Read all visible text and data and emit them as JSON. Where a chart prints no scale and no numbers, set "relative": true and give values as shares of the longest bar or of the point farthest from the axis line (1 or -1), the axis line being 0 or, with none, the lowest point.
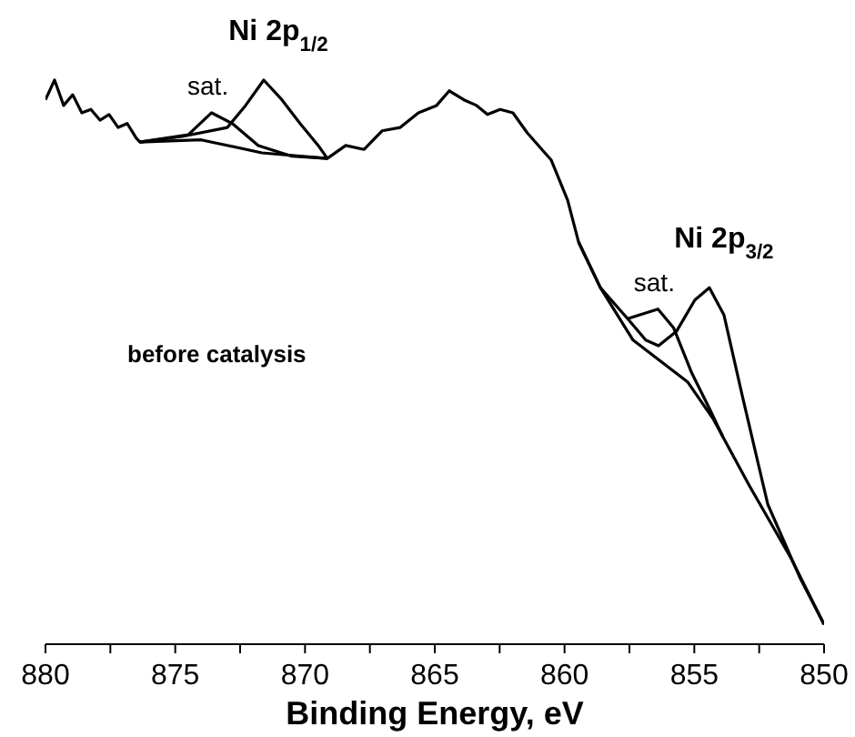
{
  "chart_data": {
    "type": "line",
    "relative": true,
    "xlabel": "Binding Energy, eV",
    "xlim": [
      880,
      850
    ],
    "xticks": [
      880,
      {
        "value": 877.5,
        "label": null
      },
      875,
      {
        "value": 872.5,
        "label": null
      },
      870,
      {
        "value": 867.5,
        "label": null
      },
      865,
      {
        "value": 862.5,
        "label": null
      },
      860,
      {
        "value": 857.5,
        "label": null
      },
      855,
      {
        "value": 852.5,
        "label": null
      },
      850
    ],
    "marker": "none",
    "series": [
      {
        "color": "#000000",
        "x": [
          880.0,
          879.65,
          879.3,
          878.95,
          878.6,
          878.25,
          877.9,
          877.55,
          877.2,
          876.85,
          876.5,
          876.36,
          874.74,
          872.99,
          872.29,
          871.59,
          870.89,
          870.19,
          869.49,
          869.14,
          868.43,
          867.73,
          867.03,
          866.33,
          865.63,
          864.93,
          864.44,
          863.88,
          863.39,
          862.97,
          862.48,
          861.99,
          861.43,
          860.51,
          859.88,
          859.46,
          858.62,
          857.57,
          856.87,
          856.38,
          855.68,
          854.98,
          854.42,
          853.86,
          853.16,
          852.17,
          850.91,
          850.0
        ],
        "values": [
          0.965,
          1.0,
          0.955,
          0.974,
          0.942,
          0.948,
          0.929,
          0.939,
          0.916,
          0.923,
          0.897,
          0.89,
          0.9,
          0.916,
          0.955,
          1.0,
          0.965,
          0.923,
          0.884,
          0.861,
          0.884,
          0.877,
          0.91,
          0.916,
          0.942,
          0.955,
          0.981,
          0.965,
          0.955,
          0.939,
          0.948,
          0.942,
          0.906,
          0.858,
          0.787,
          0.713,
          0.632,
          0.577,
          0.539,
          0.529,
          0.555,
          0.61,
          0.632,
          0.584,
          0.442,
          0.248,
          0.116,
          0.035
        ]
      },
      {
        "color": "#000000",
        "x": [
          876.36,
          874.0,
          871.66,
          869.14,
          null,
          859.46,
          858.62,
          857.36,
          855.26,
          854.28,
          852.88,
          851.27,
          850.0
        ],
        "values": [
          0.89,
          0.894,
          0.871,
          0.861,
          null,
          0.713,
          0.632,
          0.539,
          0.465,
          0.4,
          0.281,
          0.152,
          0.035
        ]
      },
      {
        "color": "#000000",
        "x": [
          876.36,
          874.5,
          873.6,
          872.8,
          871.8,
          870.5,
          869.14,
          null,
          857.57,
          856.4,
          855.8,
          855.1,
          854.4,
          853.9
        ],
        "values": [
          0.89,
          0.903,
          0.942,
          0.923,
          0.884,
          0.865,
          0.861,
          null,
          0.577,
          0.594,
          0.561,
          0.481,
          0.416,
          0.368
        ]
      }
    ],
    "annotations": [
      {
        "text": "Ni 2p$_{1/2}$",
        "x": 871.59,
        "y": 1.0
      },
      {
        "text": "sat.",
        "x": 873.6,
        "y": 0.942
      },
      {
        "text": "Ni 2p$_{3/2}$",
        "x": 854.42,
        "y": 0.632
      },
      {
        "text": "sat.",
        "x": 856.4,
        "y": 0.594
      },
      "before catalysis"
    ]
  }
}
